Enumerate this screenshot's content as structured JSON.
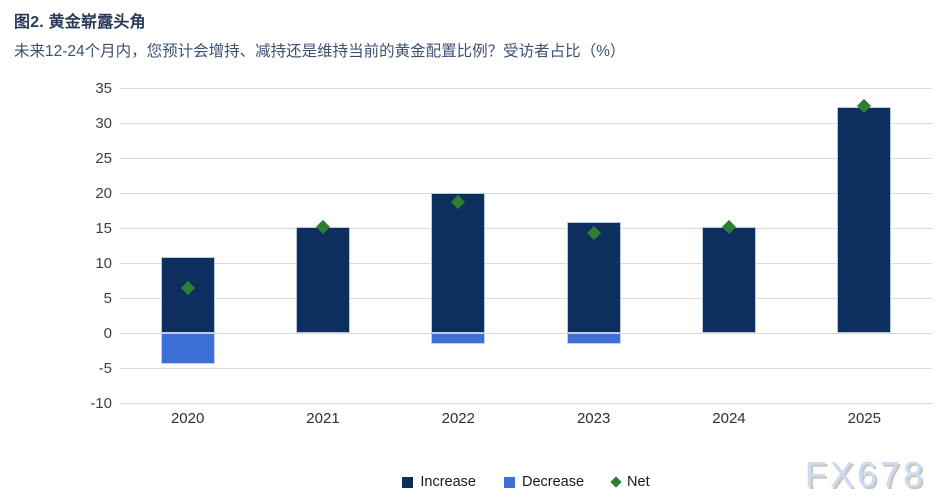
{
  "header": {
    "title": "图2. 黄金崭露头角",
    "subtitle": "未来12-24个月内，您预计会增持、减持还是维持当前的黄金配置比例？受访者占比（%）"
  },
  "chart_data": {
    "type": "bar",
    "title": "图2. 黄金崭露头角",
    "subtitle": "未来12-24个月内，您预计会增持、减持还是维持当前的黄金配置比例？受访者占比（%）",
    "categories": [
      "2020",
      "2021",
      "2022",
      "2023",
      "2024",
      "2025"
    ],
    "series": [
      {
        "name": "Increase",
        "type": "bar",
        "color": "#0d2f5f",
        "values": [
          10.8,
          15.2,
          20.0,
          15.8,
          15.1,
          32.3
        ]
      },
      {
        "name": "Decrease",
        "type": "bar",
        "color": "#3e6fd6",
        "values": [
          -4.4,
          0,
          -1.5,
          -1.6,
          0,
          0
        ]
      },
      {
        "name": "Net",
        "type": "scatter",
        "marker": "diamond",
        "color": "#2e7d32",
        "values": [
          6.5,
          15.1,
          18.7,
          14.3,
          15.1,
          32.4
        ]
      }
    ],
    "ylim": [
      -10,
      35
    ],
    "ytick_step": 5,
    "yticks": [
      35,
      30,
      25,
      20,
      15,
      10,
      5,
      0,
      -5,
      -10
    ],
    "grid": true,
    "legend_position": "bottom",
    "xlabel": "",
    "ylabel": ""
  },
  "legend": {
    "items": [
      {
        "label": "Increase",
        "color": "#0d2f5f",
        "shape": "square"
      },
      {
        "label": "Decrease",
        "color": "#3e6fd6",
        "shape": "square"
      },
      {
        "label": "Net",
        "color": "#2e7d32",
        "shape": "diamond"
      }
    ]
  },
  "watermark": {
    "text": "FX678"
  },
  "colors": {
    "increase": "#0d2f5f",
    "decrease": "#3e6fd6",
    "net": "#2e7d32",
    "gridline": "#d9d9d9",
    "title": "#2a3a58",
    "subtitle": "#3d5172",
    "watermark": "#c9dcf4"
  }
}
